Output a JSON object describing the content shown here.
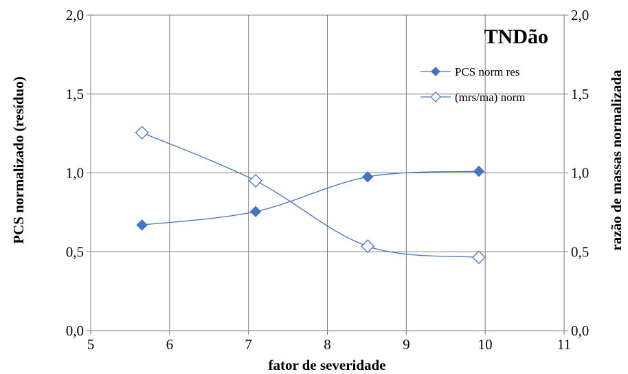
{
  "chart_data": {
    "type": "line",
    "title": "TNDão",
    "xlabel": "fator de severidade",
    "ylabel": "PCS normalizado (resíduo)",
    "ylabel_right": "razão de massas normalizada",
    "xlim": [
      5,
      11
    ],
    "ylim": [
      0.0,
      2.0
    ],
    "ylim_right": [
      0.0,
      2.0
    ],
    "xticks": [
      "5",
      "6",
      "7",
      "8",
      "9",
      "10",
      "11"
    ],
    "yticks": [
      "0,0",
      "0,5",
      "1,0",
      "1,5",
      "2,0"
    ],
    "grid": true,
    "legend_position": "top-right",
    "series": [
      {
        "name": "PCS norm res",
        "marker": "filled-diamond",
        "color": "#4472C4",
        "x": [
          5.65,
          7.09,
          8.51,
          9.92
        ],
        "y": [
          0.67,
          0.755,
          0.975,
          1.01
        ]
      },
      {
        "name": "(mrs/ma) norm",
        "marker": "open-diamond",
        "color": "#4472C4",
        "x": [
          5.65,
          7.09,
          8.51,
          9.92
        ],
        "y": [
          1.255,
          0.95,
          0.535,
          0.465
        ]
      }
    ]
  }
}
